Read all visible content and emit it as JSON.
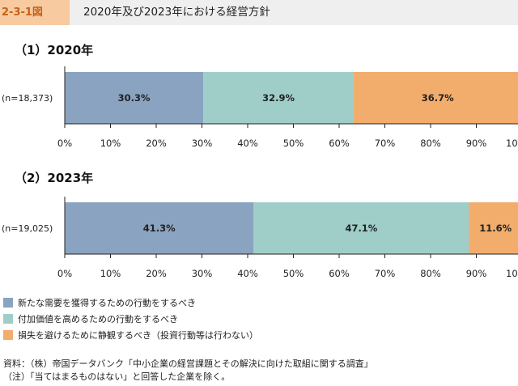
{
  "figure": {
    "label": "2-3-1図",
    "title": "2020年及び2023年における経営方針"
  },
  "colors": {
    "series1": "#8aa3c0",
    "series2": "#9fcec8",
    "series3": "#f2ac6b",
    "axis": "#222222",
    "header_bg": "#efefef",
    "label_bg": "#f7caa0"
  },
  "chart_data": [
    {
      "type": "bar",
      "orientation": "horizontal-stacked",
      "title": "（1）2020年",
      "categories": [
        "(n=18,373)"
      ],
      "series": [
        {
          "name": "新たな需要を獲得するための行動をするべき",
          "values": [
            30.3
          ],
          "label": "30.3%"
        },
        {
          "name": "付加価値を高めるための行動をするべき",
          "values": [
            32.9
          ],
          "label": "32.9%"
        },
        {
          "name": "損失を避けるために静観するべき（投資行動等は行わない）",
          "values": [
            36.7
          ],
          "label": "36.7%"
        }
      ],
      "xlim": [
        0,
        100
      ],
      "xticks": [
        "0%",
        "10%",
        "20%",
        "30%",
        "40%",
        "50%",
        "60%",
        "70%",
        "80%",
        "90%",
        "10"
      ],
      "grid": false,
      "legend": "bottom"
    },
    {
      "type": "bar",
      "orientation": "horizontal-stacked",
      "title": "（2）2023年",
      "categories": [
        "(n=19,025)"
      ],
      "series": [
        {
          "name": "新たな需要を獲得するための行動をするべき",
          "values": [
            41.3
          ],
          "label": "41.3%"
        },
        {
          "name": "付加価値を高めるための行動をするべき",
          "values": [
            47.1
          ],
          "label": "47.1%"
        },
        {
          "name": "損失を避けるために静観するべき（投資行動等は行わない）",
          "values": [
            11.6
          ],
          "label": "11.6%"
        }
      ],
      "xlim": [
        0,
        100
      ],
      "xticks": [
        "0%",
        "10%",
        "20%",
        "30%",
        "40%",
        "50%",
        "60%",
        "70%",
        "80%",
        "90%",
        "10"
      ],
      "grid": false,
      "legend": "bottom"
    }
  ],
  "legend": {
    "items": [
      "新たな需要を獲得するための行動をするべき",
      "付加価値を高めるための行動をするべき",
      "損失を避けるために静観するべき（投資行動等は行わない）"
    ]
  },
  "notes": {
    "source": "資料：（株）帝国データバンク「中小企業の経営課題とその解決に向けた取組に関する調査」",
    "note": "（注）「当てはまるものはない」と回答した企業を除く。"
  }
}
